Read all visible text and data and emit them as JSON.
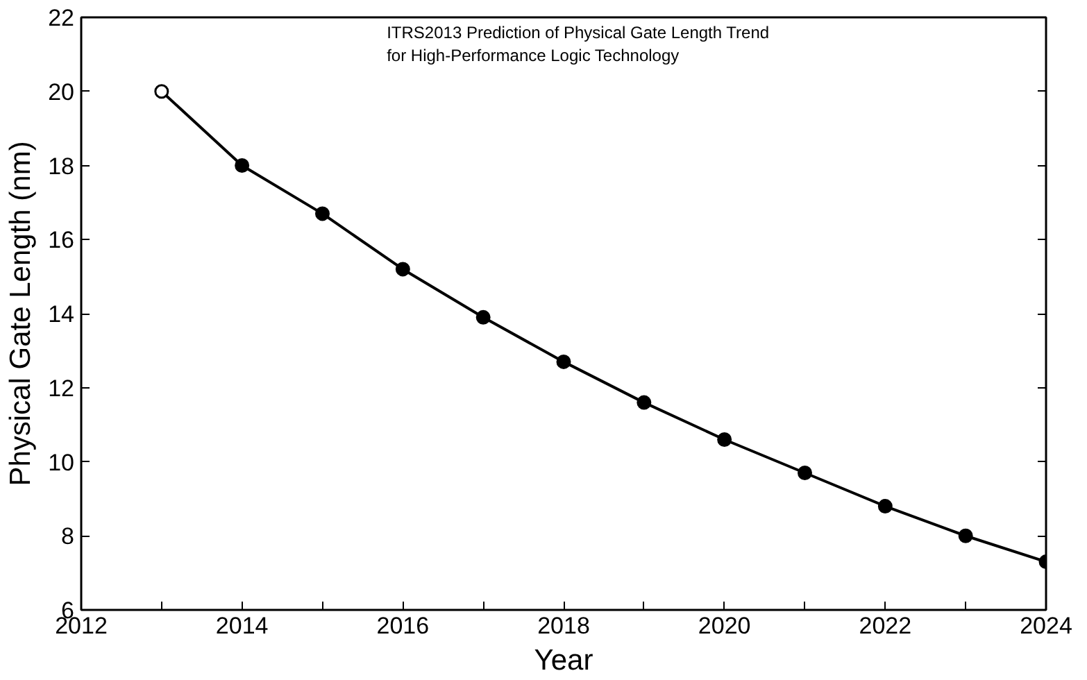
{
  "chart_data": {
    "type": "line",
    "xlabel": "Year",
    "ylabel": "Physical Gate Length (nm)",
    "annotations": [
      "ITRS2013 Prediction of Physical Gate Length Trend\nfor High-Performance Logic Technology"
    ],
    "x": [
      2013,
      2014,
      2015,
      2016,
      2017,
      2018,
      2019,
      2020,
      2021,
      2022,
      2023,
      2024
    ],
    "series": [
      {
        "color": "#000000",
        "values": [
          20.0,
          18.0,
          16.7,
          15.2,
          13.9,
          12.7,
          11.6,
          10.6,
          9.7,
          8.8,
          8.0,
          7.3
        ],
        "colors": [
          "#ffffff",
          "#000000",
          "#000000",
          "#000000",
          "#000000",
          "#000000",
          "#000000",
          "#000000",
          "#000000",
          "#000000",
          "#000000",
          "#000000"
        ]
      }
    ],
    "xlim": [
      2012,
      2024
    ],
    "ylim": [
      6,
      22
    ],
    "xticks": [
      2012,
      {
        "value": 2013,
        "label": null
      },
      2014,
      {
        "value": 2015,
        "label": null
      },
      2016,
      {
        "value": 2017,
        "label": null
      },
      2018,
      {
        "value": 2019,
        "label": null
      },
      2020,
      {
        "value": 2021,
        "label": null
      },
      2022,
      {
        "value": 2023,
        "label": null
      },
      2024
    ],
    "yticks": [
      6,
      8,
      10,
      12,
      14,
      16,
      18,
      20,
      22
    ],
    "grid": false,
    "marker": "circle",
    "line_style": "solid"
  }
}
